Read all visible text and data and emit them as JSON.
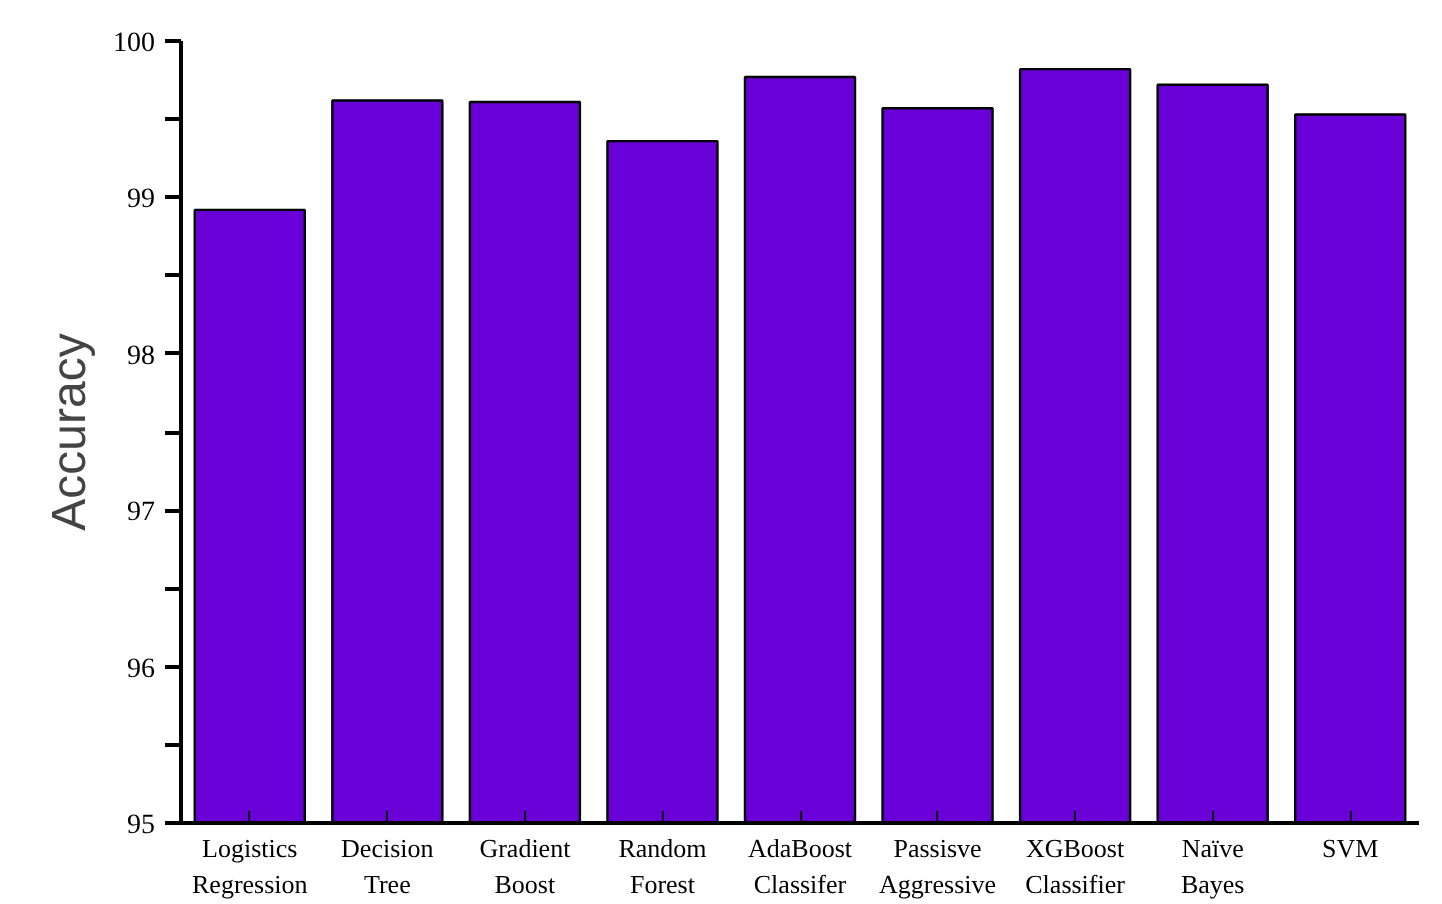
{
  "chart_data": {
    "type": "bar",
    "ylabel": "Accuracy",
    "categories": [
      "Logistics Regression",
      "Decision Tree",
      "Gradient Boost",
      "Random Forest",
      "AdaBoost Classifer",
      "Passisve Aggressive",
      "XGBoost Classifier",
      "Naïve Bayes",
      "SVM"
    ],
    "values": [
      98.92,
      99.62,
      99.61,
      99.36,
      99.77,
      99.57,
      99.82,
      99.72,
      99.53
    ],
    "color": "#6a00d8",
    "ylim": [
      95,
      100
    ],
    "yticks": [
      95,
      {
        "value": 95.5,
        "label": null
      },
      96,
      {
        "value": 96.5,
        "label": null
      },
      97,
      {
        "value": 97.5,
        "label": null
      },
      98,
      {
        "value": 98.5,
        "label": null
      },
      99,
      {
        "value": 99.5,
        "label": null
      },
      100
    ],
    "tick_labels": true
  }
}
